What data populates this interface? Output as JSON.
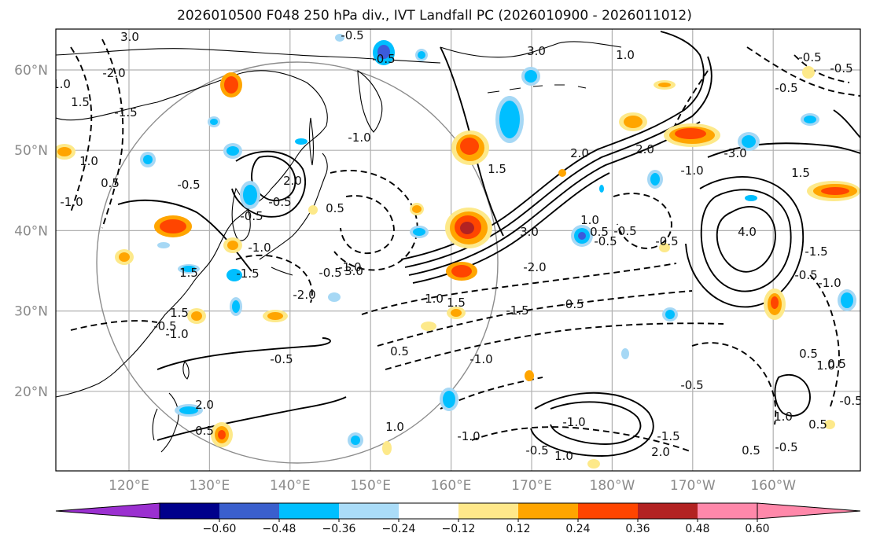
{
  "title": "2026010500 F048 250 hPa div., IVT Landfall PC (2026010900 - 2026011012)",
  "map": {
    "lat_labels": [
      "60°N",
      "50°N",
      "40°N",
      "30°N",
      "20°N"
    ],
    "lat_values": [
      60,
      50,
      40,
      30,
      20
    ],
    "lon_labels": [
      "120°E",
      "130°E",
      "140°E",
      "150°E",
      "160°E",
      "170°E",
      "180°W",
      "170°W",
      "160°W"
    ],
    "lon_values": [
      120,
      130,
      140,
      150,
      160,
      170,
      180,
      190,
      200
    ],
    "lat_range": [
      10,
      65
    ],
    "lon_range": [
      110,
      210
    ],
    "gridlines": true,
    "gridline_color": "#b0b0b0",
    "coastline_color": "#000000",
    "contour_labels": [
      "3.0",
      "-0.5",
      "-0.5",
      "-2.0",
      "1.5",
      "1.0",
      "-1.5",
      "1.0",
      "0.5",
      "-1.0",
      "-0.5",
      "-0.5",
      "2.0",
      "-1.0",
      "-1.5",
      "1.5",
      "1.5",
      "-0.5",
      "-0.5",
      "-2.0",
      "-0.5",
      "3.0",
      "0.5",
      "-1.0",
      "-1.0",
      "1.0",
      "1.5",
      "1.5",
      "3.0",
      "-2.0",
      "1.0",
      "-0.5",
      "-0.5",
      "0.5",
      "2.0",
      "-0.5",
      "-1.5",
      "-1.0",
      "0.5",
      "1.0",
      "-0.5",
      "2.0",
      "-1.0",
      "0.5",
      "-1.0",
      "1.0",
      "-0.5",
      "2.0",
      "0.5",
      "-1.5",
      "-0.5",
      "1.0",
      "-0.5",
      "0.5",
      "1.0",
      "3.0",
      "1.0",
      "-0.5",
      "-0.5",
      "-0.5",
      "4.0",
      "1.5",
      "-1.0",
      "2.0",
      "-3.0",
      "-1.0",
      "-0.5",
      "-1.0",
      "-1.5",
      "-0.5",
      "0.5",
      "0.5",
      "-0.5"
    ],
    "div_positive_colors": [
      "#fde98a",
      "#ffa500",
      "#ff4500",
      "#b22222"
    ],
    "div_negative_colors": [
      "#a6d8f5",
      "#00bfff",
      "#3b5bdb",
      "#7b4fd0"
    ]
  },
  "colorbar": {
    "labels": [
      "−0.60",
      "−0.48",
      "−0.36",
      "−0.24",
      "−0.12",
      "0.12",
      "0.24",
      "0.36",
      "0.48",
      "0.60"
    ],
    "colors": [
      "#9b30d0",
      "#00008b",
      "#3a5fcd",
      "#00bfff",
      "#aadcf8",
      "#ffffff",
      "#ffe88a",
      "#ffa500",
      "#ff4500",
      "#b22222",
      "#ff88aa",
      "#ff88aa"
    ],
    "under_color": "#9b30d0",
    "over_color": "#ff88aa"
  }
}
